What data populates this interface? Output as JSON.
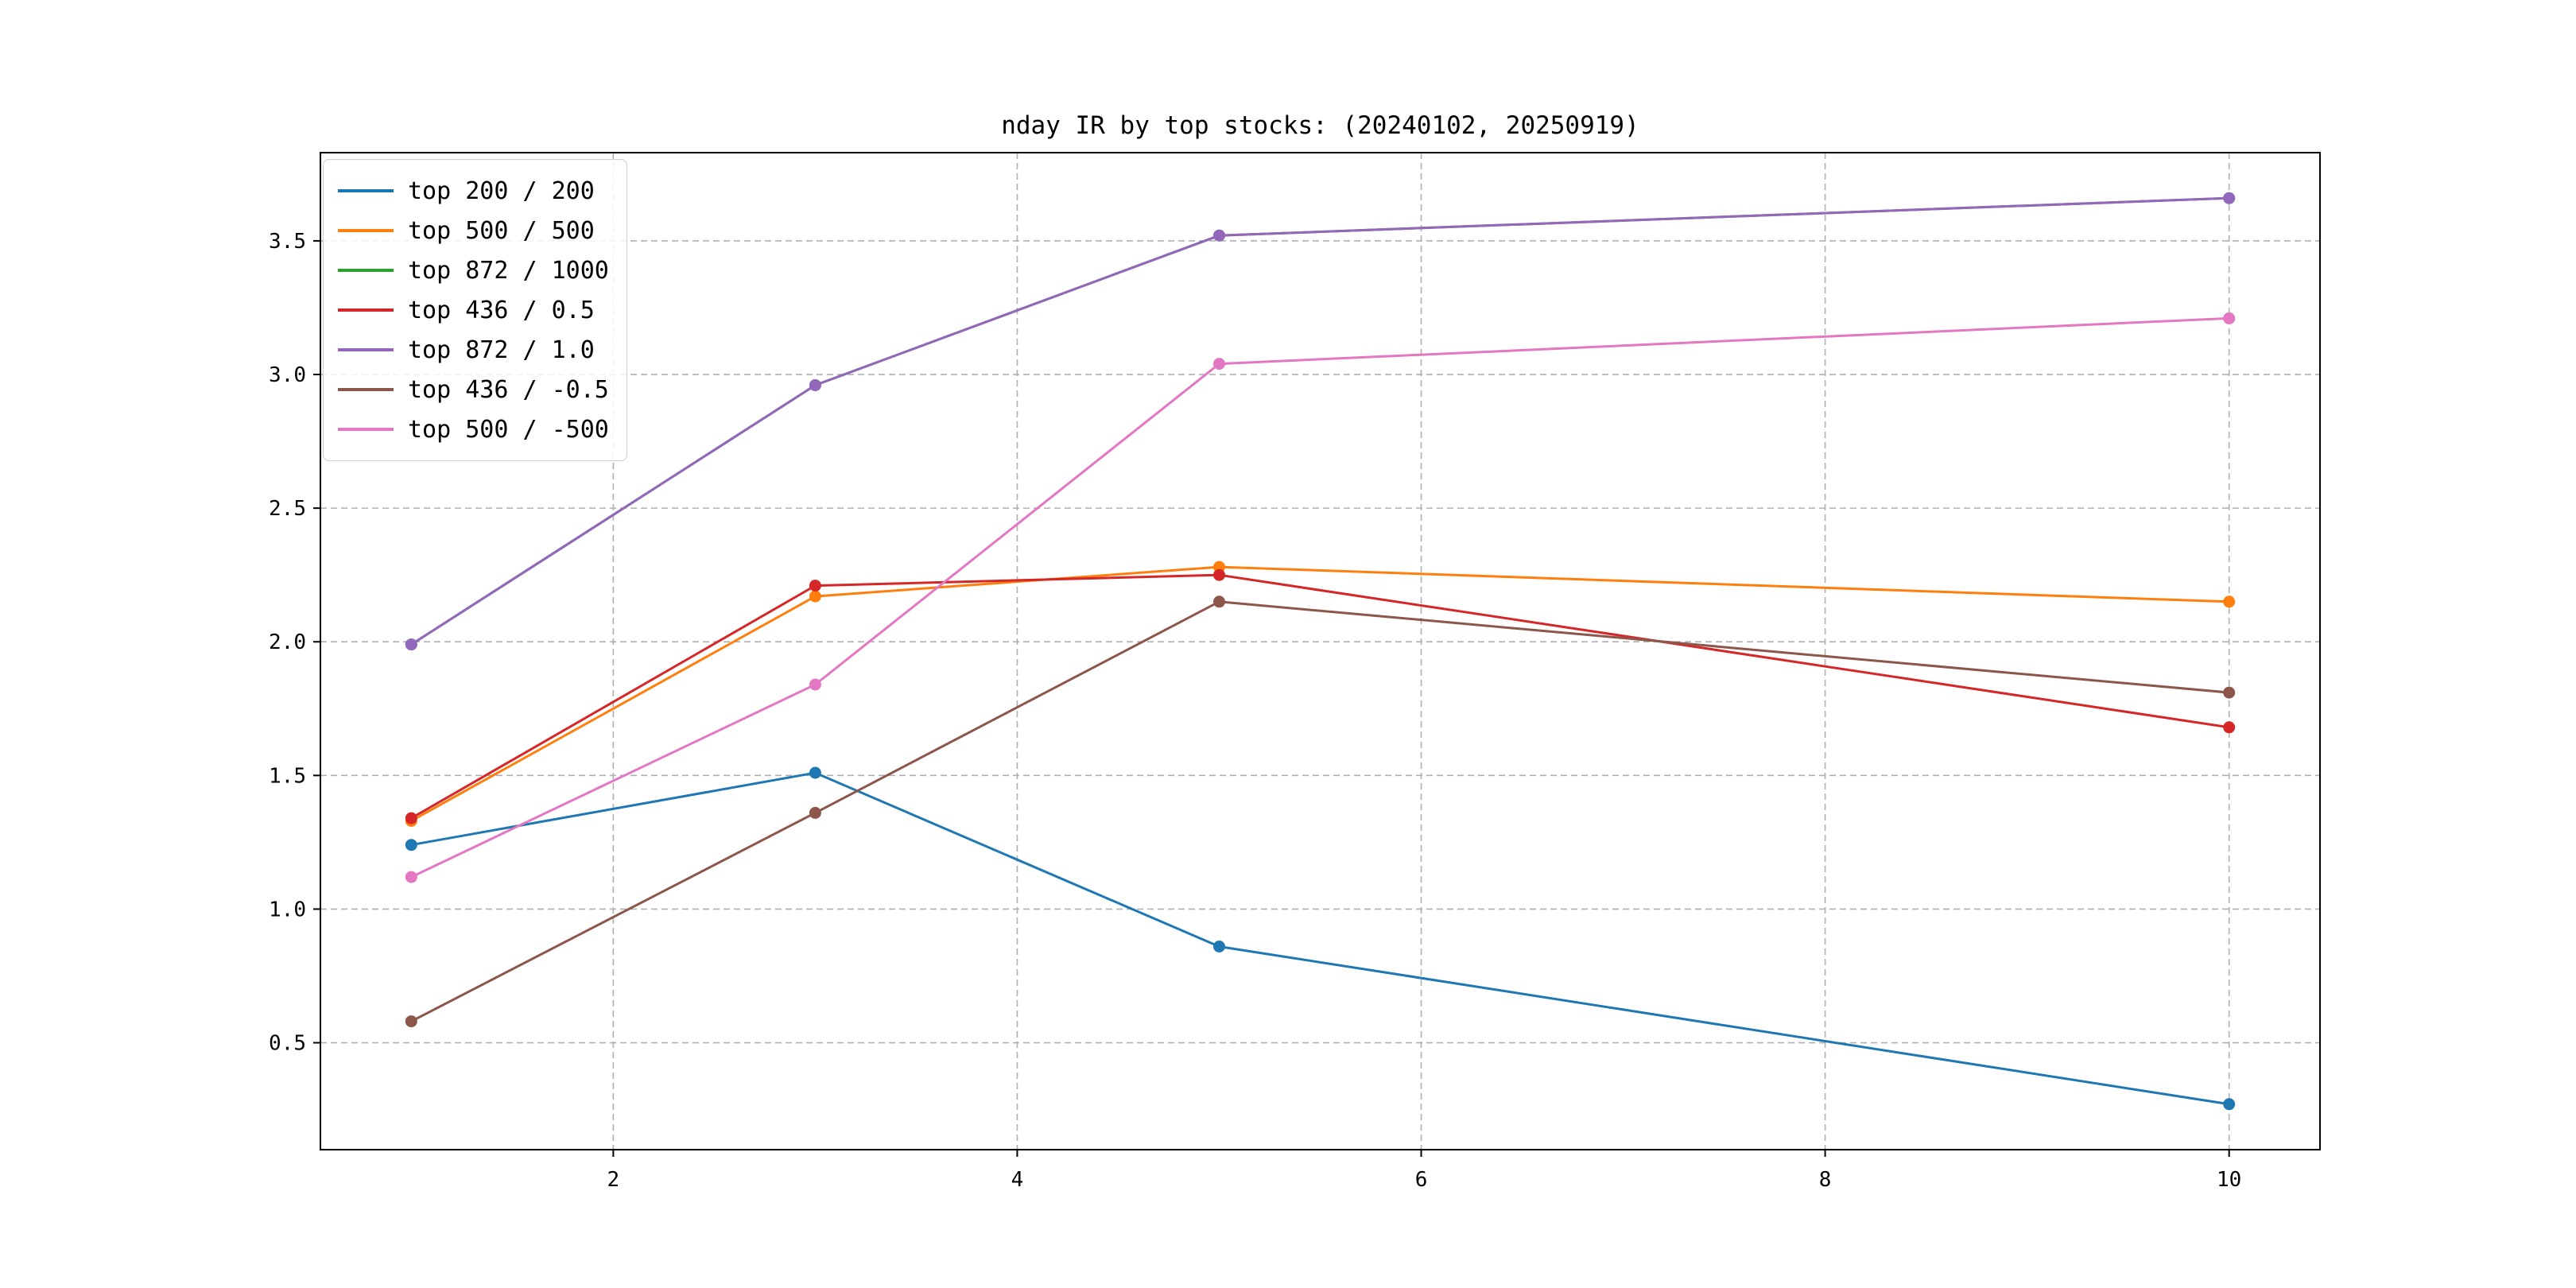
{
  "figure": {
    "title": "nday IR by top stocks: (20240102, 20250919)"
  },
  "chart_data": {
    "type": "line",
    "title": "nday IR by top stocks: (20240102, 20250919)",
    "x": [
      1,
      3,
      5,
      10
    ],
    "series": [
      {
        "name": "top 200 / 200",
        "color": "#1f77b4",
        "values": [
          1.24,
          1.51,
          0.86,
          0.27
        ]
      },
      {
        "name": "top 500 / 500",
        "color": "#ff7f0e",
        "values": [
          1.33,
          2.17,
          2.28,
          2.15
        ]
      },
      {
        "name": "top 872 / 1000",
        "color": "#2ca02c",
        "values": [
          1.99,
          2.96,
          3.52,
          3.66
        ]
      },
      {
        "name": "top 436 / 0.5",
        "color": "#d62728",
        "values": [
          1.34,
          2.21,
          2.25,
          1.68
        ]
      },
      {
        "name": "top 872 / 1.0",
        "color": "#9467bd",
        "values": [
          1.99,
          2.96,
          3.52,
          3.66
        ]
      },
      {
        "name": "top 436 / -0.5",
        "color": "#8c564b",
        "values": [
          0.58,
          1.36,
          2.15,
          1.81
        ]
      },
      {
        "name": "top 500 / -500",
        "color": "#e377c2",
        "values": [
          1.12,
          1.84,
          3.04,
          3.21
        ]
      }
    ],
    "xticks": [
      2,
      4,
      6,
      8,
      10
    ],
    "xticklabels": [
      "2",
      "4",
      "6",
      "8",
      "10"
    ],
    "yticks": [
      0.5,
      1.0,
      1.5,
      2.0,
      2.5,
      3.0,
      3.5
    ],
    "yticklabels": [
      "0.5",
      "1.0",
      "1.5",
      "2.0",
      "2.5",
      "3.0",
      "3.5"
    ],
    "xlim": [
      0.55,
      10.45
    ],
    "ylim": [
      0.1,
      3.83
    ],
    "xlabel": "",
    "ylabel": "",
    "grid": "dashed",
    "grid_color": "#b0b0b0",
    "axis_color": "#000000",
    "legend_position": "upper-left"
  }
}
